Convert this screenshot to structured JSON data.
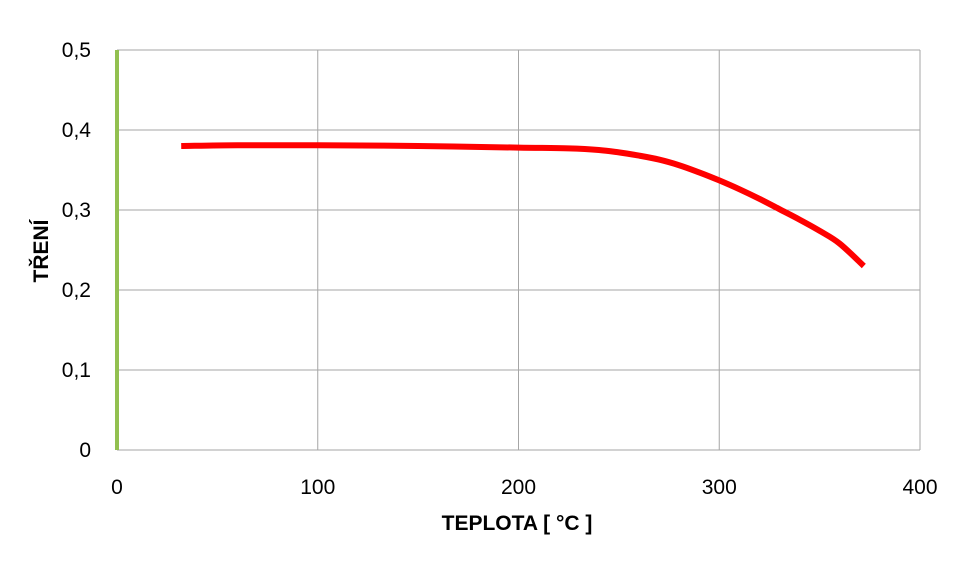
{
  "chart_data": {
    "type": "line",
    "title": "",
    "xlabel": "TEPLOTA [ °C ]",
    "ylabel": "TŘENÍ",
    "xlim": [
      0,
      400
    ],
    "ylim": [
      0,
      0.5
    ],
    "x_ticks": [
      0,
      100,
      200,
      300,
      400
    ],
    "y_ticks": [
      0,
      0.1,
      0.2,
      0.3,
      0.4,
      0.5
    ],
    "x_tick_labels": [
      "0",
      "100",
      "200",
      "300",
      "400"
    ],
    "y_tick_labels": [
      "0",
      "0,1",
      "0,2",
      "0,3",
      "0,4",
      "0,5"
    ],
    "grid": true,
    "legend": "none",
    "series": [
      {
        "color": "#ff0000",
        "x": [
          32,
          60,
          100,
          150,
          200,
          225,
          240,
          250,
          260,
          270,
          280,
          290,
          300,
          310,
          320,
          330,
          340,
          350,
          360,
          372
        ],
        "y": [
          0.38,
          0.381,
          0.381,
          0.38,
          0.378,
          0.377,
          0.375,
          0.372,
          0.368,
          0.363,
          0.356,
          0.347,
          0.337,
          0.326,
          0.314,
          0.301,
          0.288,
          0.274,
          0.258,
          0.23
        ]
      }
    ],
    "y_axis_color": "#92c050",
    "grid_color": "#a6a6a6"
  }
}
